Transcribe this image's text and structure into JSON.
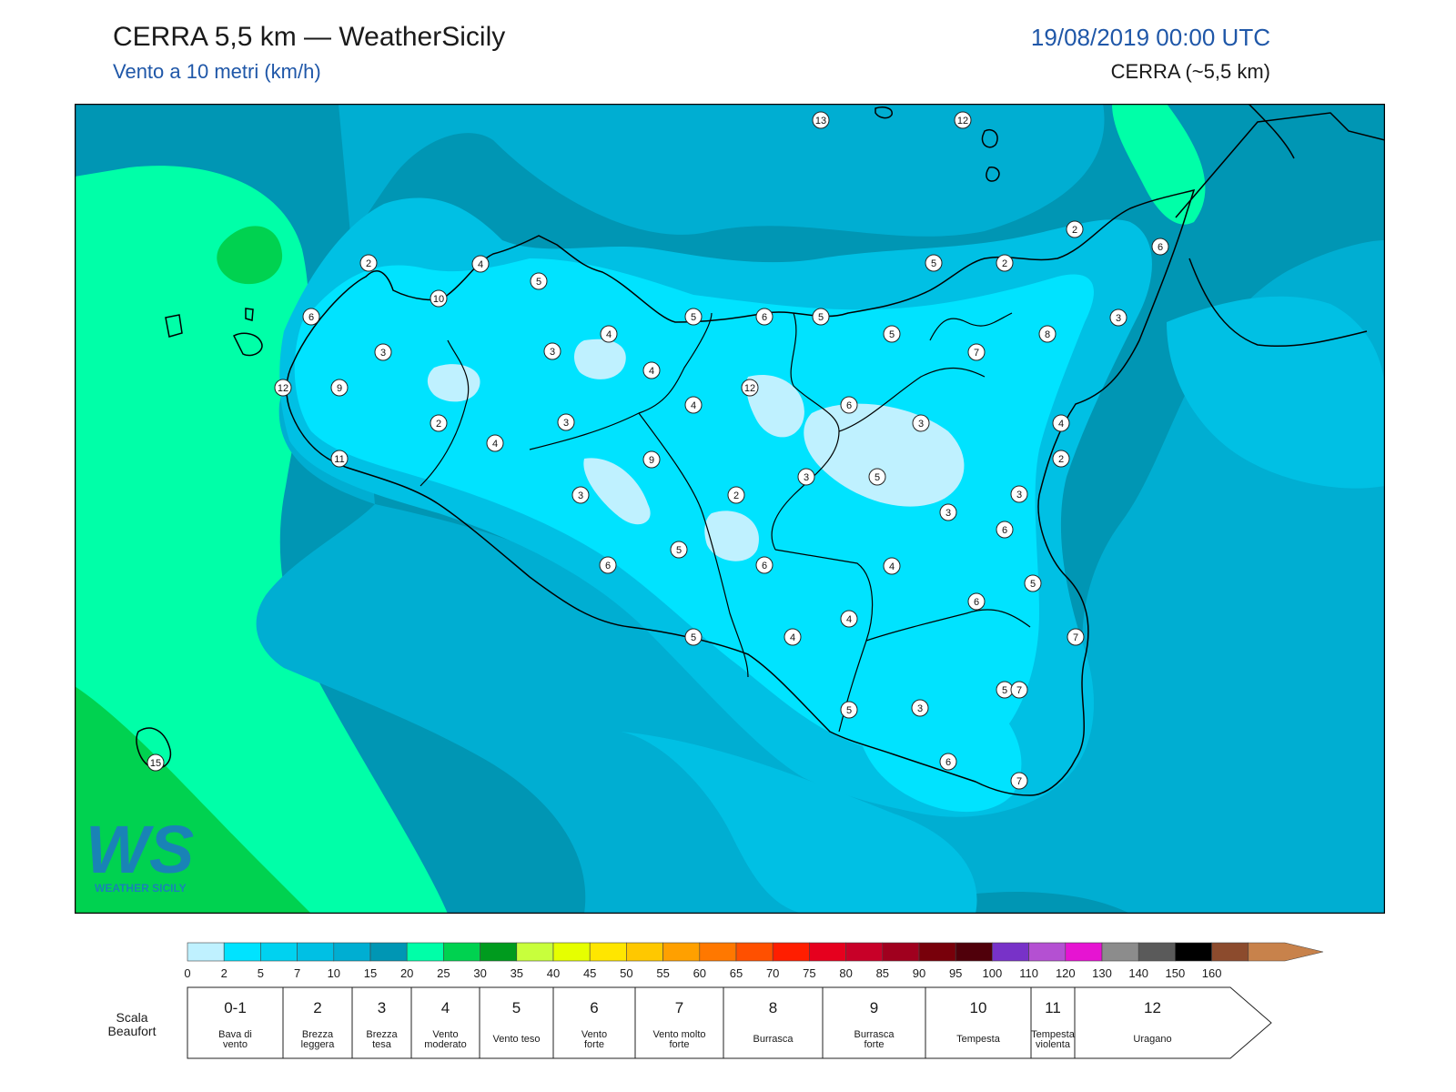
{
  "header": {
    "title": "CERRA 5,5 km — WeatherSicily",
    "subtitle": "Vento a 10 metri (km/h)",
    "datetime": "19/08/2019 00:00 UTC",
    "model": "CERRA (~5,5 km)"
  },
  "logo": {
    "text": "WS",
    "caption": "WEATHER SICILY"
  },
  "colorbar": {
    "ticks": [
      "0",
      "2",
      "5",
      "7",
      "10",
      "15",
      "20",
      "25",
      "30",
      "35",
      "40",
      "45",
      "50",
      "55",
      "60",
      "65",
      "70",
      "75",
      "80",
      "85",
      "90",
      "95",
      "100",
      "110",
      "120",
      "130",
      "140",
      "150",
      "160"
    ],
    "colors": [
      "#bff1ff",
      "#00e3ff",
      "#00d2f0",
      "#00c0e4",
      "#00aed2",
      "#0096b4",
      "#00ffa8",
      "#00d250",
      "#009b1e",
      "#c8ff3c",
      "#e6ff00",
      "#ffe600",
      "#ffc800",
      "#ffa000",
      "#ff7800",
      "#ff5000",
      "#ff1e00",
      "#e6001e",
      "#c80028",
      "#a0001e",
      "#78000a",
      "#50000a",
      "#7832c8",
      "#b450d2",
      "#e614d2",
      "#8c8c8c",
      "#5a5a5a",
      "#000000",
      "#8c4b2d",
      "#c8824b"
    ]
  },
  "beaufort": {
    "scale_title": [
      "Scala",
      "Beaufort"
    ],
    "levels": [
      {
        "num": "0-1",
        "desc": [
          "Bava di",
          "vento"
        ]
      },
      {
        "num": "2",
        "desc": [
          "Brezza",
          "leggera"
        ]
      },
      {
        "num": "3",
        "desc": [
          "Brezza",
          "tesa"
        ]
      },
      {
        "num": "4",
        "desc": [
          "Vento",
          "moderato"
        ]
      },
      {
        "num": "5",
        "desc": [
          "Vento teso"
        ]
      },
      {
        "num": "6",
        "desc": [
          "Vento",
          "forte"
        ]
      },
      {
        "num": "7",
        "desc": [
          "Vento molto",
          "forte"
        ]
      },
      {
        "num": "8",
        "desc": [
          "Burrasca"
        ]
      },
      {
        "num": "9",
        "desc": [
          "Burrasca",
          "forte"
        ]
      },
      {
        "num": "10",
        "desc": [
          "Tempesta"
        ]
      },
      {
        "num": "11",
        "desc": [
          "Tempesta",
          "violenta"
        ]
      },
      {
        "num": "12",
        "desc": [
          "Uragano"
        ]
      }
    ]
  },
  "station_values": [
    "13",
    "12",
    "2",
    "4",
    "5",
    "10",
    "6",
    "3",
    "12",
    "9",
    "11",
    "2",
    "4",
    "3",
    "4",
    "3",
    "4",
    "4",
    "5",
    "6",
    "5",
    "5",
    "2",
    "2",
    "6",
    "3",
    "8",
    "7",
    "5",
    "12",
    "6",
    "3",
    "4",
    "2",
    "3",
    "6",
    "5",
    "2",
    "3",
    "9",
    "3",
    "5",
    "6",
    "4",
    "3",
    "6",
    "5",
    "7",
    "5",
    "4",
    "6",
    "4",
    "5",
    "3",
    "7",
    "5",
    "6",
    "7",
    "15"
  ]
}
